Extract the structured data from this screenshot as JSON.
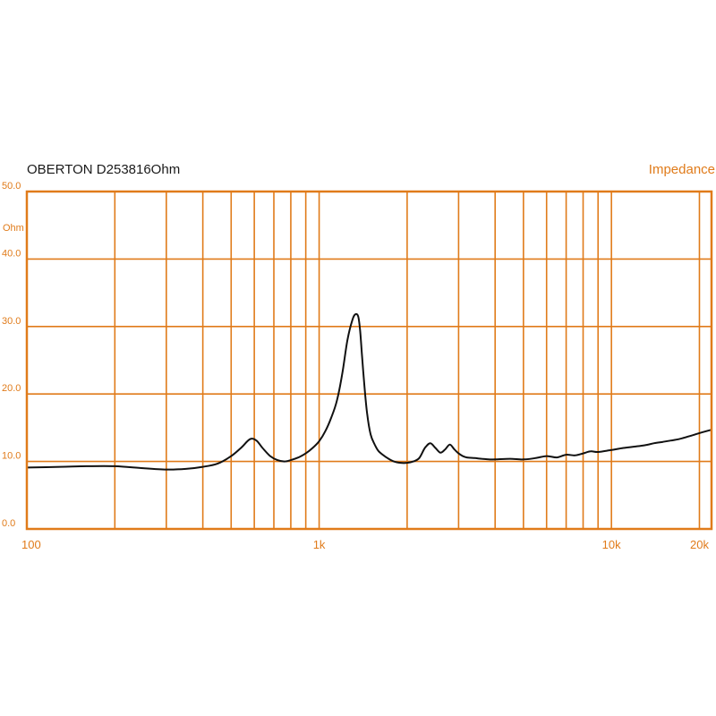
{
  "chart_data": {
    "type": "line",
    "title": "OBERTON D253816Ohm",
    "panel_label": "Impedance",
    "ylabel": "Ohm",
    "xscale": "log",
    "xlim": [
      100,
      22000
    ],
    "ylim": [
      0,
      50
    ],
    "grid": true,
    "colors": {
      "grid": "#e07b1a",
      "line": "#111111",
      "text": "#e07b1a"
    },
    "x_ticks": [
      {
        "value": 100,
        "label": "100"
      },
      {
        "value": 1000,
        "label": "1k"
      },
      {
        "value": 10000,
        "label": "10k"
      },
      {
        "value": 20000,
        "label": "20k"
      }
    ],
    "y_ticks": [
      {
        "value": 0,
        "label": "0.0"
      },
      {
        "value": 10,
        "label": "10.0"
      },
      {
        "value": 20,
        "label": "20.0"
      },
      {
        "value": 30,
        "label": "30.0"
      },
      {
        "value": 40,
        "label": "40.0"
      },
      {
        "value": 50,
        "label": "50.0"
      }
    ],
    "x_grid_lines": [
      200,
      300,
      400,
      500,
      600,
      700,
      800,
      900,
      1000,
      2000,
      3000,
      4000,
      5000,
      6000,
      7000,
      8000,
      9000,
      10000,
      20000
    ],
    "series": [
      {
        "x": [
          100,
          130,
          160,
          200,
          250,
          300,
          350,
          400,
          450,
          500,
          540,
          580,
          610,
          640,
          680,
          720,
          760,
          800,
          850,
          900,
          950,
          1000,
          1050,
          1100,
          1150,
          1200,
          1250,
          1300,
          1330,
          1360,
          1380,
          1400,
          1430,
          1460,
          1500,
          1550,
          1600,
          1700,
          1800,
          1900,
          2000,
          2100,
          2200,
          2300,
          2400,
          2500,
          2600,
          2700,
          2800,
          2900,
          3000,
          3100,
          3200,
          3400,
          3600,
          3800,
          4000,
          4500,
          5000,
          5500,
          6000,
          6500,
          7000,
          7500,
          8000,
          8500,
          9000,
          10000,
          11000,
          12000,
          13000,
          14000,
          15000,
          16000,
          17000,
          18000,
          19000,
          20000,
          22000
        ],
        "y": [
          9.1,
          9.2,
          9.3,
          9.3,
          9.0,
          8.8,
          8.9,
          9.2,
          9.7,
          10.8,
          12.0,
          13.3,
          13.1,
          12.0,
          10.8,
          10.2,
          10.0,
          10.2,
          10.6,
          11.2,
          12.0,
          13.0,
          14.5,
          16.5,
          19.0,
          23.0,
          28.0,
          31.0,
          31.8,
          31.5,
          29.5,
          26.0,
          21.0,
          17.0,
          14.0,
          12.5,
          11.5,
          10.6,
          10.0,
          9.8,
          9.8,
          10.0,
          10.5,
          12.0,
          12.7,
          12.0,
          11.3,
          11.8,
          12.5,
          11.8,
          11.2,
          10.8,
          10.6,
          10.5,
          10.4,
          10.3,
          10.3,
          10.4,
          10.3,
          10.5,
          10.8,
          10.6,
          11.0,
          10.9,
          11.2,
          11.5,
          11.4,
          11.7,
          12.0,
          12.2,
          12.4,
          12.7,
          12.9,
          13.1,
          13.3,
          13.6,
          13.9,
          14.2,
          14.7
        ]
      }
    ]
  }
}
